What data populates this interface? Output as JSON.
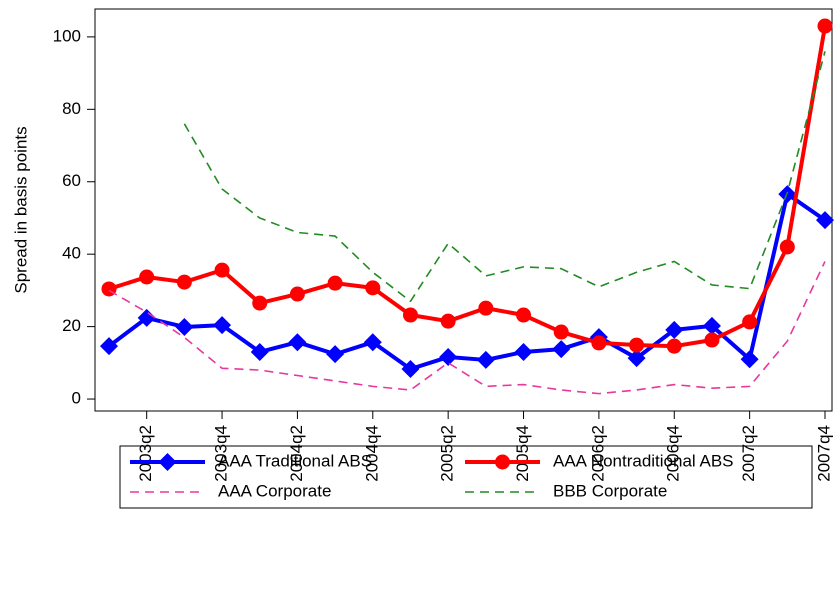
{
  "chart_data": {
    "type": "line",
    "y_label": "Spread in basis points",
    "categories": [
      null,
      "2003q2",
      null,
      "2003q4",
      null,
      "2004q2",
      null,
      "2004q4",
      null,
      "2005q2",
      null,
      "2005q4",
      null,
      "2006q2",
      null,
      "2006q4",
      null,
      "2007q2",
      null,
      "2007q4"
    ],
    "series": [
      {
        "name": "AAA Traditional ABS",
        "color": "#0000ff",
        "marker": "diamond",
        "line_style": "solid",
        "values": [
          14.6,
          22.4,
          19.9,
          20.4,
          13.0,
          15.7,
          12.4,
          15.7,
          8.3,
          11.6,
          10.8,
          13.0,
          13.8,
          17.1,
          11.3,
          19.1,
          20.2,
          11.0,
          56.6,
          49.4
        ]
      },
      {
        "name": "AAA Nontraditional ABS",
        "color": "#ff0000",
        "marker": "circle",
        "line_style": "solid",
        "values": [
          30.4,
          33.7,
          32.3,
          35.6,
          26.5,
          29.0,
          32.0,
          30.7,
          23.2,
          21.5,
          25.1,
          23.2,
          18.5,
          15.5,
          14.9,
          14.6,
          16.3,
          21.3,
          42.0,
          103.0
        ]
      },
      {
        "name": "AAA Corporate",
        "color": "#e8389e",
        "marker": "none",
        "line_style": "dashed",
        "values": [
          30.0,
          24.0,
          17.0,
          8.5,
          8.0,
          6.5,
          5.0,
          3.5,
          2.5,
          10.0,
          3.5,
          4.0,
          2.5,
          1.5,
          2.5,
          4.0,
          3.0,
          3.5,
          16.0,
          38.0
        ]
      },
      {
        "name": "BBB Corporate",
        "color": "#228b22",
        "marker": "none",
        "line_style": "dashed",
        "values": [
          null,
          null,
          76.0,
          58.0,
          50.0,
          46.0,
          45.0,
          35.0,
          27.0,
          43.0,
          34.0,
          36.5,
          36.0,
          31.0,
          35.0,
          38.0,
          31.5,
          30.5,
          57.0,
          96.0
        ]
      }
    ],
    "ylim": [
      -3.3,
      107.7
    ],
    "yticks": [
      0,
      20,
      40,
      60,
      80,
      100
    ],
    "grid": false,
    "legend": "bottom"
  }
}
